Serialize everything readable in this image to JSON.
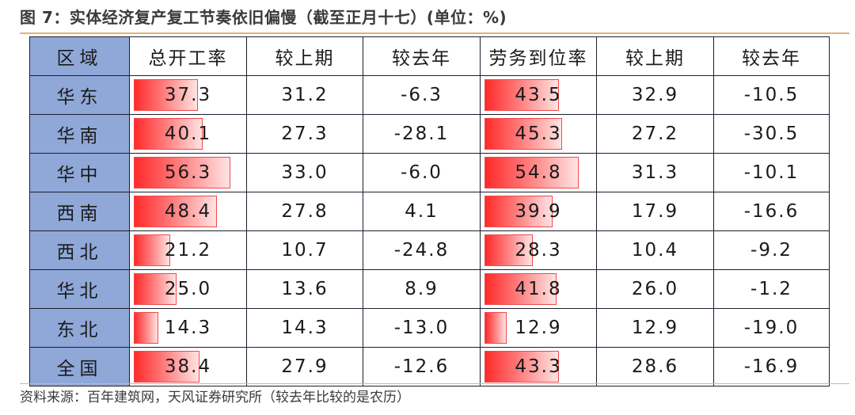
{
  "title": "图 7：实体经济复产复工节奏依旧偏慢（截至正月十七）(单位：%)",
  "source": "资料来源：百年建筑网，天风证券研究所（较去年比较的是农历）",
  "table": {
    "headers": [
      "区域",
      "总开工率",
      "较上期",
      "较去年",
      "劳务到位率",
      "较上期",
      "较去年"
    ],
    "rows": [
      {
        "region": "华东",
        "start_rate": "37.3",
        "start_vs_prev": "31.2",
        "start_vs_ly": "-6.3",
        "labor_rate": "43.5",
        "labor_vs_prev": "32.9",
        "labor_vs_ly": "-10.5"
      },
      {
        "region": "华南",
        "start_rate": "40.1",
        "start_vs_prev": "27.3",
        "start_vs_ly": "-28.1",
        "labor_rate": "45.3",
        "labor_vs_prev": "27.2",
        "labor_vs_ly": "-30.5"
      },
      {
        "region": "华中",
        "start_rate": "56.3",
        "start_vs_prev": "33.0",
        "start_vs_ly": "-6.0",
        "labor_rate": "54.8",
        "labor_vs_prev": "31.3",
        "labor_vs_ly": "-10.1"
      },
      {
        "region": "西南",
        "start_rate": "48.4",
        "start_vs_prev": "27.8",
        "start_vs_ly": "4.1",
        "labor_rate": "39.9",
        "labor_vs_prev": "17.9",
        "labor_vs_ly": "-16.6"
      },
      {
        "region": "西北",
        "start_rate": "21.2",
        "start_vs_prev": "10.7",
        "start_vs_ly": "-24.8",
        "labor_rate": "28.3",
        "labor_vs_prev": "10.4",
        "labor_vs_ly": "-9.2"
      },
      {
        "region": "华北",
        "start_rate": "25.0",
        "start_vs_prev": "13.6",
        "start_vs_ly": "8.9",
        "labor_rate": "41.8",
        "labor_vs_prev": "26.0",
        "labor_vs_ly": "-1.2"
      },
      {
        "region": "东北",
        "start_rate": "14.3",
        "start_vs_prev": "14.3",
        "start_vs_ly": "-13.0",
        "labor_rate": "12.9",
        "labor_vs_prev": "12.9",
        "labor_vs_ly": "-19.0"
      },
      {
        "region": "全国",
        "start_rate": "38.4",
        "start_vs_prev": "27.9",
        "start_vs_ly": "-12.6",
        "labor_rate": "43.3",
        "labor_vs_prev": "28.6",
        "labor_vs_ly": "-16.9"
      }
    ]
  },
  "colors": {
    "region_bg": "#8fa8d8",
    "bar": "#ff2a2a",
    "rule": "#e3b07c"
  }
}
